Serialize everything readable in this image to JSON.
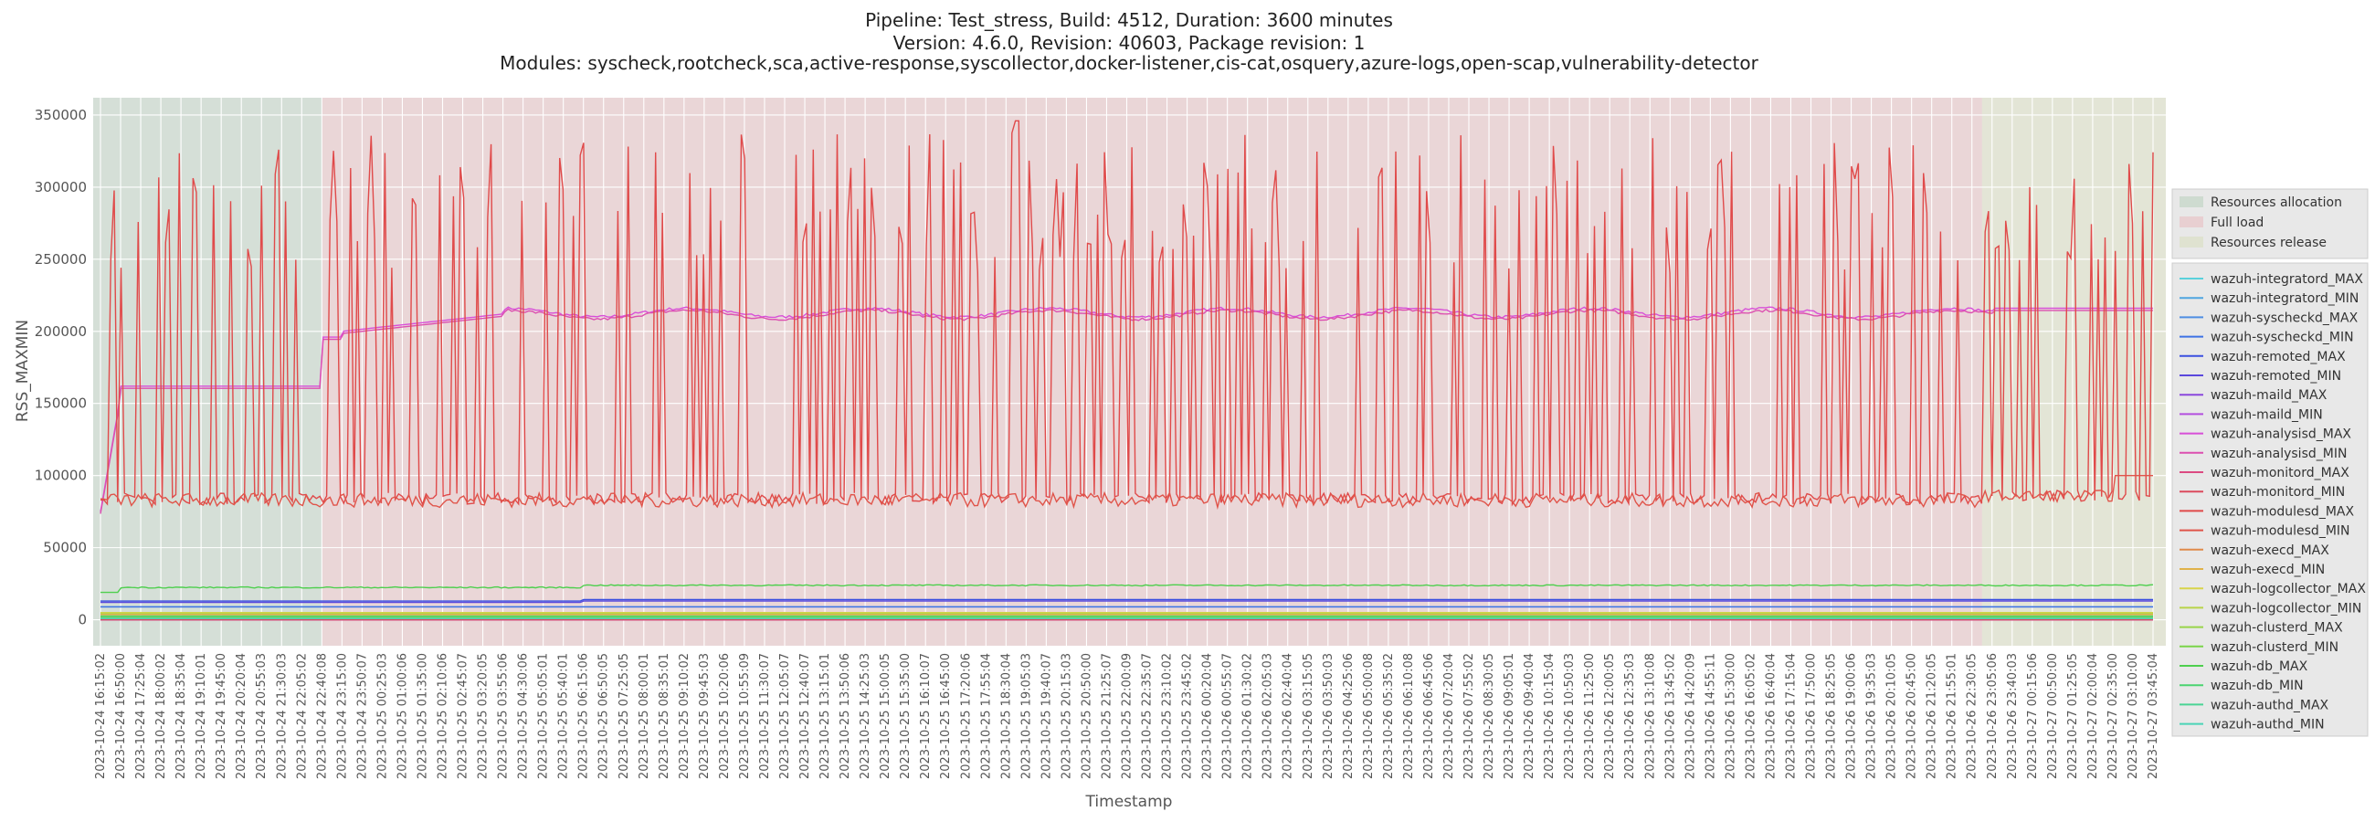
{
  "chart_data": {
    "type": "line",
    "title_lines": [
      "Pipeline: Test_stress, Build: 4512, Duration: 3600 minutes",
      "Version: 4.6.0, Revision: 40603, Package revision: 1",
      "Modules: syscheck,rootcheck,sca,active-response,syscollector,docker-listener,cis-cat,osquery,azure-logs,open-scap,vulnerability-detector"
    ],
    "xlabel": "Timestamp",
    "ylabel": "RSS_MAXMIN",
    "ylim": [
      -18000,
      362000
    ],
    "yticks": [
      0,
      50000,
      100000,
      150000,
      200000,
      250000,
      300000,
      350000
    ],
    "x_tick_labels": [
      "2023-10-24 16:15:02",
      "2023-10-24 16:50:00",
      "2023-10-24 17:25:04",
      "2023-10-24 18:00:02",
      "2023-10-24 18:35:04",
      "2023-10-24 19:10:01",
      "2023-10-24 19:45:00",
      "2023-10-24 20:20:04",
      "2023-10-24 20:55:03",
      "2023-10-24 21:30:03",
      "2023-10-24 22:05:02",
      "2023-10-24 22:40:08",
      "2023-10-24 23:15:00",
      "2023-10-24 23:50:07",
      "2023-10-25 00:25:03",
      "2023-10-25 01:00:06",
      "2023-10-25 01:35:00",
      "2023-10-25 02:10:06",
      "2023-10-25 02:45:07",
      "2023-10-25 03:20:05",
      "2023-10-25 03:55:06",
      "2023-10-25 04:30:06",
      "2023-10-25 05:05:01",
      "2023-10-25 05:40:01",
      "2023-10-25 06:15:06",
      "2023-10-25 06:50:05",
      "2023-10-25 07:25:05",
      "2023-10-25 08:00:01",
      "2023-10-25 08:35:01",
      "2023-10-25 09:10:02",
      "2023-10-25 09:45:03",
      "2023-10-25 10:20:06",
      "2023-10-25 10:55:09",
      "2023-10-25 11:30:07",
      "2023-10-25 12:05:07",
      "2023-10-25 12:40:07",
      "2023-10-25 13:15:01",
      "2023-10-25 13:50:06",
      "2023-10-25 14:25:03",
      "2023-10-25 15:00:05",
      "2023-10-25 15:35:00",
      "2023-10-25 16:10:07",
      "2023-10-25 16:45:00",
      "2023-10-25 17:20:06",
      "2023-10-25 17:55:04",
      "2023-10-25 18:30:04",
      "2023-10-25 19:05:03",
      "2023-10-25 19:40:07",
      "2023-10-25 20:15:03",
      "2023-10-25 20:50:00",
      "2023-10-25 21:25:07",
      "2023-10-25 22:00:09",
      "2023-10-25 22:35:07",
      "2023-10-25 23:10:02",
      "2023-10-25 23:45:02",
      "2023-10-26 00:20:04",
      "2023-10-26 00:55:07",
      "2023-10-26 01:30:02",
      "2023-10-26 02:05:03",
      "2023-10-26 02:40:04",
      "2023-10-26 03:15:05",
      "2023-10-26 03:50:03",
      "2023-10-26 04:25:06",
      "2023-10-26 05:00:08",
      "2023-10-26 05:35:02",
      "2023-10-26 06:10:08",
      "2023-10-26 06:45:06",
      "2023-10-26 07:20:04",
      "2023-10-26 07:55:02",
      "2023-10-26 08:30:05",
      "2023-10-26 09:05:01",
      "2023-10-26 09:40:04",
      "2023-10-26 10:15:04",
      "2023-10-26 10:50:03",
      "2023-10-26 11:25:00",
      "2023-10-26 12:00:05",
      "2023-10-26 12:35:03",
      "2023-10-26 13:10:08",
      "2023-10-26 13:45:02",
      "2023-10-26 14:20:09",
      "2023-10-26 14:55:11",
      "2023-10-26 15:30:00",
      "2023-10-26 16:05:02",
      "2023-10-26 16:40:04",
      "2023-10-26 17:15:04",
      "2023-10-26 17:50:00",
      "2023-10-26 18:25:05",
      "2023-10-26 19:00:06",
      "2023-10-26 19:35:03",
      "2023-10-26 20:10:05",
      "2023-10-26 20:45:00",
      "2023-10-26 21:20:05",
      "2023-10-26 21:55:01",
      "2023-10-26 22:30:05",
      "2023-10-26 23:05:06",
      "2023-10-26 23:40:03",
      "2023-10-27 00:15:06",
      "2023-10-27 00:50:00",
      "2023-10-27 01:25:05",
      "2023-10-27 02:00:04",
      "2023-10-27 02:35:00",
      "2023-10-27 03:10:00",
      "2023-10-27 03:45:04"
    ],
    "phases": [
      {
        "name": "Resources allocation",
        "start": 0,
        "end": 11,
        "color": "#9ec2a4"
      },
      {
        "name": "Full load",
        "start": 11,
        "end": 93.5,
        "color": "#e8a0a6"
      },
      {
        "name": "Resources release",
        "start": 93.5,
        "end": 118,
        "color": "#cfd6a2"
      }
    ],
    "series": [
      {
        "name": "wazuh-integratord_MAX",
        "color": "#5ad1dc",
        "level": 0
      },
      {
        "name": "wazuh-integratord_MIN",
        "color": "#4fa5e0",
        "level": 0
      },
      {
        "name": "wazuh-syscheckd_MAX",
        "color": "#4f8ee3",
        "level": 9000
      },
      {
        "name": "wazuh-syscheckd_MIN",
        "color": "#3d72e5",
        "level": 9000
      },
      {
        "name": "wazuh-remoted_MAX",
        "color": "#3a4fe0",
        "level": 13000
      },
      {
        "name": "wazuh-remoted_MIN",
        "color": "#5a48dc",
        "level": 12000
      },
      {
        "name": "wazuh-maild_MAX",
        "color": "#8a48dc",
        "level": 0
      },
      {
        "name": "wazuh-maild_MIN",
        "color": "#b34fdf",
        "level": 0
      },
      {
        "name": "wazuh-analysisd_MAX",
        "color": "#d84fd8",
        "level": 212000
      },
      {
        "name": "wazuh-analysisd_MIN",
        "color": "#dc4fb0",
        "level": 211000
      },
      {
        "name": "wazuh-monitord_MAX",
        "color": "#dc4a82",
        "level": 0
      },
      {
        "name": "wazuh-monitord_MIN",
        "color": "#dc4a5e",
        "level": 0
      },
      {
        "name": "wazuh-modulesd_MAX",
        "color": "#e04a4a",
        "level": 250000
      },
      {
        "name": "wazuh-modulesd_MIN",
        "color": "#e0544a",
        "level": 80000
      },
      {
        "name": "wazuh-execd_MAX",
        "color": "#e08a4a",
        "level": 4000
      },
      {
        "name": "wazuh-execd_MIN",
        "color": "#e0b24a",
        "level": 3500
      },
      {
        "name": "wazuh-logcollector_MAX",
        "color": "#d8d44a",
        "level": 5000
      },
      {
        "name": "wazuh-logcollector_MIN",
        "color": "#b9d44a",
        "level": 4500
      },
      {
        "name": "wazuh-clusterd_MAX",
        "color": "#98d44a",
        "level": 2000
      },
      {
        "name": "wazuh-clusterd_MIN",
        "color": "#7ad44a",
        "level": 1800
      },
      {
        "name": "wazuh-db_MAX",
        "color": "#4ecf4e",
        "level": 23000
      },
      {
        "name": "wazuh-db_MIN",
        "color": "#4ad470",
        "level": 2500
      },
      {
        "name": "wazuh-authd_MAX",
        "color": "#4ad494",
        "level": 1000
      },
      {
        "name": "wazuh-authd_MIN",
        "color": "#4ad4b6",
        "level": 900
      }
    ],
    "grid": true,
    "legend": "right"
  }
}
